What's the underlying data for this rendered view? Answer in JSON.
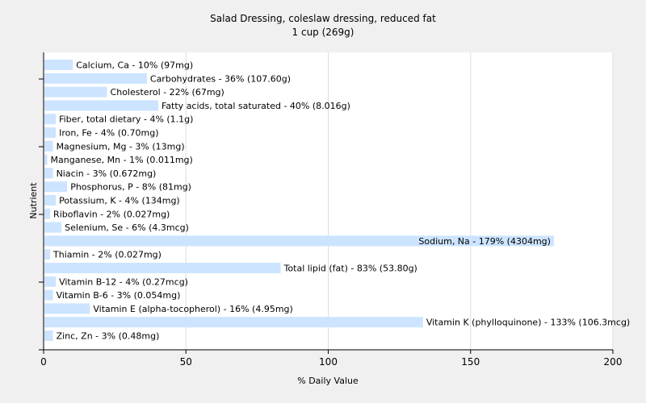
{
  "chart_data": {
    "type": "bar",
    "orientation": "horizontal",
    "title": "Salad Dressing, coleslaw dressing, reduced fat",
    "subtitle": "1 cup (269g)",
    "xlabel": "% Daily Value",
    "ylabel": "Nutrient",
    "xlim": [
      0,
      200
    ],
    "xticks": [
      "0",
      "50",
      "100",
      "150",
      "200"
    ],
    "grid": true,
    "bar_color": "#cce4ff",
    "categories": [
      "Calcium, Ca",
      "Carbohydrates",
      "Cholesterol",
      "Fatty acids, total saturated",
      "Fiber, total dietary",
      "Iron, Fe",
      "Magnesium, Mg",
      "Manganese, Mn",
      "Niacin",
      "Phosphorus, P",
      "Potassium, K",
      "Riboflavin",
      "Selenium, Se",
      "Sodium, Na",
      "Thiamin",
      "Total lipid (fat)",
      "Vitamin B-12",
      "Vitamin B-6",
      "Vitamin E (alpha-tocopherol)",
      "Vitamin K (phylloquinone)",
      "Zinc, Zn"
    ],
    "values": [
      10,
      36,
      22,
      40,
      4,
      4,
      3,
      1,
      3,
      8,
      4,
      2,
      6,
      179,
      2,
      83,
      4,
      3,
      16,
      133,
      3
    ],
    "labels": [
      "Calcium, Ca - 10% (97mg)",
      "Carbohydrates - 36% (107.60g)",
      "Cholesterol - 22% (67mg)",
      "Fatty acids, total saturated - 40% (8.016g)",
      "Fiber, total dietary - 4% (1.1g)",
      "Iron, Fe - 4% (0.70mg)",
      "Magnesium, Mg - 3% (13mg)",
      "Manganese, Mn - 1% (0.011mg)",
      "Niacin - 3% (0.672mg)",
      "Phosphorus, P - 8% (81mg)",
      "Potassium, K - 4% (134mg)",
      "Riboflavin - 2% (0.027mg)",
      "Selenium, Se - 6% (4.3mcg)",
      "Sodium, Na - 179% (4304mg)",
      "Thiamin - 2% (0.027mg)",
      "Total lipid (fat) - 83% (53.80g)",
      "Vitamin B-12 - 4% (0.27mcg)",
      "Vitamin B-6 - 3% (0.054mg)",
      "Vitamin E (alpha-tocopherol) - 16% (4.95mg)",
      "Vitamin K (phylloquinone) - 133% (106.3mcg)",
      "Zinc, Zn - 3% (0.48mg)"
    ]
  }
}
